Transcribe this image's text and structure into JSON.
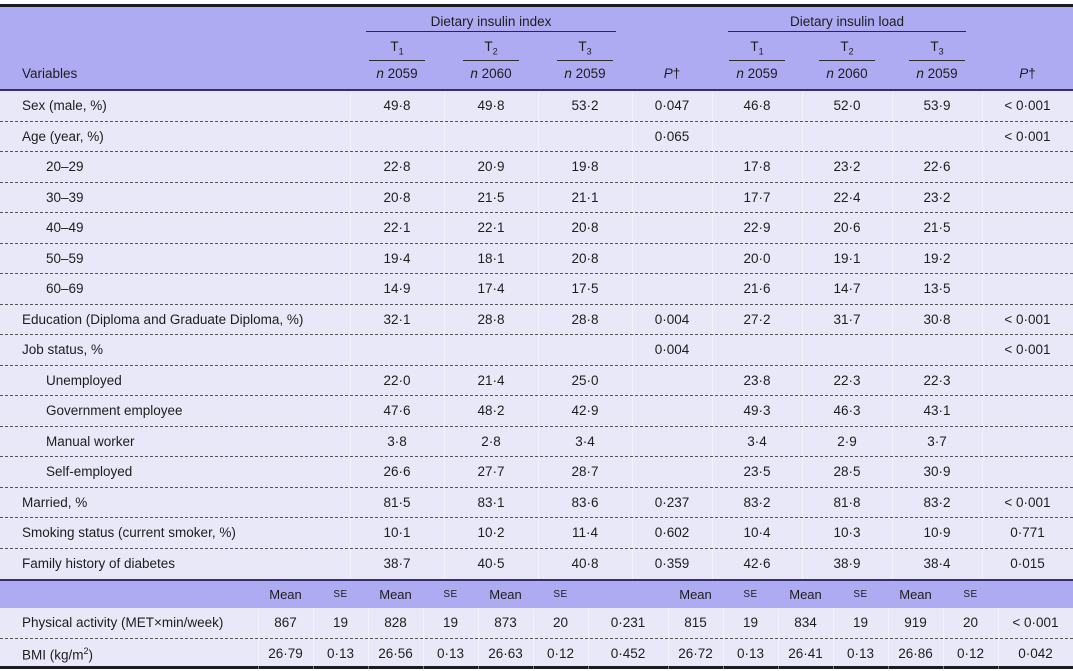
{
  "palette": {
    "header_bg": "#afabf3",
    "body_bg": "#e9e8f8",
    "dark_rule": "#32316d",
    "outer_rule": "#1c1c20",
    "text": "#1d1d1d"
  },
  "header": {
    "variables_label": "Variables",
    "p_label": {
      "it": "P",
      "dagger": "†"
    },
    "groups": [
      {
        "title": "Dietary insulin index",
        "tertiles": [
          {
            "t_base": "T",
            "t_sub": "1",
            "n_italic": "n",
            "n_value": "2059"
          },
          {
            "t_base": "T",
            "t_sub": "2",
            "n_italic": "n",
            "n_value": "2060"
          },
          {
            "t_base": "T",
            "t_sub": "3",
            "n_italic": "n",
            "n_value": "2059"
          }
        ]
      },
      {
        "title": "Dietary insulin load",
        "tertiles": [
          {
            "t_base": "T",
            "t_sub": "1",
            "n_italic": "n",
            "n_value": "2059"
          },
          {
            "t_base": "T",
            "t_sub": "2",
            "n_italic": "n",
            "n_value": "2060"
          },
          {
            "t_base": "T",
            "t_sub": "3",
            "n_italic": "n",
            "n_value": "2059"
          }
        ]
      }
    ]
  },
  "body_rows": [
    {
      "label": "Sex (male, %)",
      "indent": false,
      "values": [
        "49·8",
        "49·8",
        "53·2",
        "0·047",
        "46·8",
        "52·0",
        "53·9",
        "< 0·001"
      ]
    },
    {
      "label": "Age (year, %)",
      "indent": false,
      "values": [
        "",
        "",
        "",
        "0·065",
        "",
        "",
        "",
        "< 0·001"
      ]
    },
    {
      "label": "20–29",
      "indent": true,
      "values": [
        "22·8",
        "20·9",
        "19·8",
        "",
        "17·8",
        "23·2",
        "22·6",
        ""
      ]
    },
    {
      "label": "30–39",
      "indent": true,
      "values": [
        "20·8",
        "21·5",
        "21·1",
        "",
        "17·7",
        "22·4",
        "23·2",
        ""
      ]
    },
    {
      "label": "40–49",
      "indent": true,
      "values": [
        "22·1",
        "22·1",
        "20·8",
        "",
        "22·9",
        "20·6",
        "21·5",
        ""
      ]
    },
    {
      "label": "50–59",
      "indent": true,
      "values": [
        "19·4",
        "18·1",
        "20·8",
        "",
        "20·0",
        "19·1",
        "19·2",
        ""
      ]
    },
    {
      "label": "60–69",
      "indent": true,
      "values": [
        "14·9",
        "17·4",
        "17·5",
        "",
        "21·6",
        "14·7",
        "13·5",
        ""
      ]
    },
    {
      "label": "Education (Diploma and Graduate Diploma, %)",
      "indent": false,
      "values": [
        "32·1",
        "28·8",
        "28·8",
        "0·004",
        "27·2",
        "31·7",
        "30·8",
        "< 0·001"
      ]
    },
    {
      "label": "Job status, %",
      "indent": false,
      "values": [
        "",
        "",
        "",
        "0·004",
        "",
        "",
        "",
        "< 0·001"
      ]
    },
    {
      "label": "Unemployed",
      "indent": true,
      "values": [
        "22·0",
        "21·4",
        "25·0",
        "",
        "23·8",
        "22·3",
        "22·3",
        ""
      ]
    },
    {
      "label": "Government employee",
      "indent": true,
      "values": [
        "47·6",
        "48·2",
        "42·9",
        "",
        "49·3",
        "46·3",
        "43·1",
        ""
      ]
    },
    {
      "label": "Manual worker",
      "indent": true,
      "values": [
        "3·8",
        "2·8",
        "3·4",
        "",
        "3·4",
        "2·9",
        "3·7",
        ""
      ]
    },
    {
      "label": "Self-employed",
      "indent": true,
      "values": [
        "26·6",
        "27·7",
        "28·7",
        "",
        "23·5",
        "28·5",
        "30·9",
        ""
      ]
    },
    {
      "label": "Married, %",
      "indent": false,
      "values": [
        "81·5",
        "83·1",
        "83·6",
        "0·237",
        "83·2",
        "81·8",
        "83·2",
        "< 0·001"
      ]
    },
    {
      "label": "Smoking status (current smoker, %)",
      "indent": false,
      "values": [
        "10·1",
        "10·2",
        "11·4",
        "0·602",
        "10·4",
        "10·3",
        "10·9",
        "0·771"
      ]
    },
    {
      "label": "Family history of diabetes",
      "indent": false,
      "values": [
        "38·7",
        "40·5",
        "40·8",
        "0·359",
        "42·6",
        "38·9",
        "38·4",
        "0·015"
      ]
    }
  ],
  "stats": {
    "columns": [
      "Mean",
      "SE",
      "Mean",
      "SE",
      "Mean",
      "SE",
      "",
      "Mean",
      "SE",
      "Mean",
      "SE",
      "Mean",
      "SE",
      ""
    ],
    "rows": [
      {
        "label": "Physical activity (MET×min/week)",
        "values": [
          "867",
          "19",
          "828",
          "19",
          "873",
          "20",
          "0·231",
          "815",
          "19",
          "834",
          "19",
          "919",
          "20",
          "< 0·001"
        ]
      },
      {
        "label_pre": "BMI (kg/m",
        "label_sup": "2",
        "label_post": ")",
        "values": [
          "26·79",
          "0·13",
          "26·56",
          "0·13",
          "26·63",
          "0·12",
          "0·452",
          "26·72",
          "0·13",
          "26·41",
          "0·13",
          "26·86",
          "0·12",
          "0·042"
        ]
      }
    ]
  }
}
